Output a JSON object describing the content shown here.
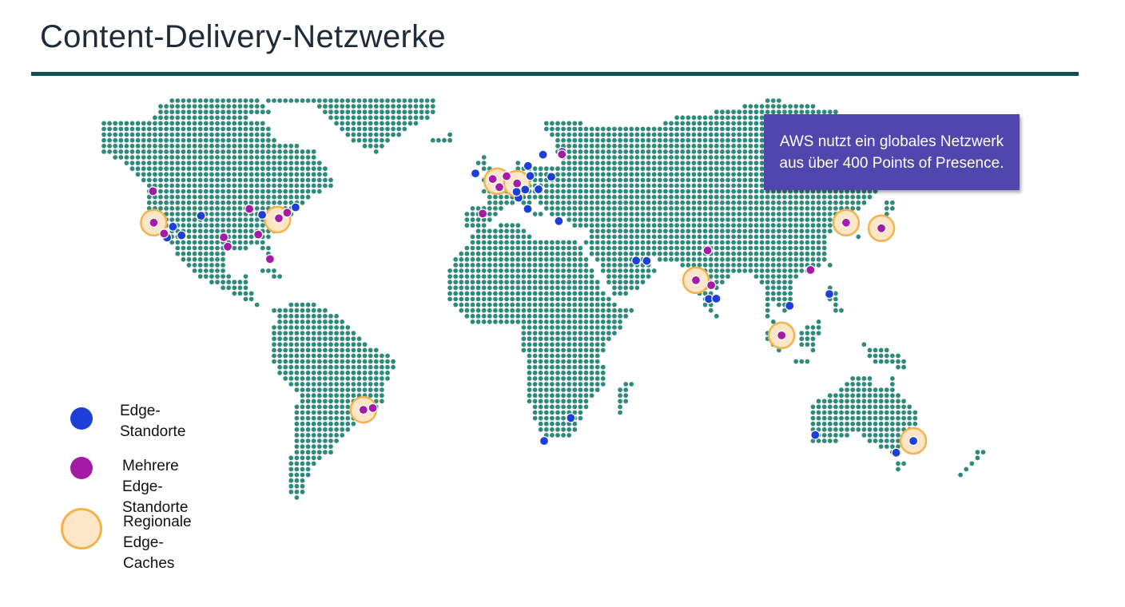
{
  "slide": {
    "title": "Content-Delivery-Netzwerke",
    "callout": "AWS nutzt ein globales Netzwerk aus über 400 Points of Presence."
  },
  "legend": {
    "edge_label": "Edge-\nStandorte",
    "multi_edge_label": "Mehrere Edge-\nStandorte",
    "regional_cache_label": "Regionale\nEdge-Caches"
  },
  "colors": {
    "land_dot": "#2f8a7b",
    "edge_location": "#1d3fd6",
    "multiple_edge_locations": "#a41ba6",
    "regional_cache_fill": "#fde6c8",
    "regional_cache_stroke": "#f2b24d",
    "callout_bg": "#5146ad",
    "title_rule": "#12504f"
  },
  "map": {
    "style": "dotted world map",
    "regional_edge_caches": [
      {
        "name": "US West",
        "lat": 37.5,
        "lon": -122
      },
      {
        "name": "US East",
        "lat": 38.5,
        "lon": -77.5
      },
      {
        "name": "Western Europe",
        "lat": 50.8,
        "lon": 1.5
      },
      {
        "name": "Central Europe",
        "lat": 50,
        "lon": 8.6
      },
      {
        "name": "Mumbai",
        "lat": 19,
        "lon": 73
      },
      {
        "name": "Seoul",
        "lat": 37.5,
        "lon": 127
      },
      {
        "name": "Tokyo",
        "lat": 35.7,
        "lon": 139.7
      },
      {
        "name": "Singapore",
        "lat": 1.3,
        "lon": 103.8
      },
      {
        "name": "São Paulo",
        "lat": -23.5,
        "lon": -46.6
      },
      {
        "name": "Sydney",
        "lat": -33.9,
        "lon": 151.2
      }
    ],
    "edge_locations": [
      {
        "lat": 34,
        "lon": -118
      },
      {
        "lat": 32.7,
        "lon": -117.2
      },
      {
        "lat": 36.2,
        "lon": -115.1
      },
      {
        "lat": 33.4,
        "lon": -112
      },
      {
        "lat": 39.7,
        "lon": -105
      },
      {
        "lat": 32.8,
        "lon": -96.8
      },
      {
        "lat": 41.9,
        "lon": -87.6
      },
      {
        "lat": 40.7,
        "lon": -74
      },
      {
        "lat": 38.9,
        "lon": -77
      },
      {
        "lat": 42.4,
        "lon": -71
      },
      {
        "lat": 33.7,
        "lon": -84.4
      },
      {
        "lat": 25.8,
        "lon": -80.2
      },
      {
        "lat": 40,
        "lon": -83
      },
      {
        "lat": 59.3,
        "lon": 18
      },
      {
        "lat": 55.7,
        "lon": 12.6
      },
      {
        "lat": 60.2,
        "lon": 24.9
      },
      {
        "lat": 51.5,
        "lon": -0.1
      },
      {
        "lat": 53.3,
        "lon": -6.3
      },
      {
        "lat": 48.9,
        "lon": 2.3
      },
      {
        "lat": 52.4,
        "lon": 4.9
      },
      {
        "lat": 50.1,
        "lon": 8.7
      },
      {
        "lat": 52.5,
        "lon": 13.4
      },
      {
        "lat": 48.1,
        "lon": 11.6
      },
      {
        "lat": 45.5,
        "lon": 9.2
      },
      {
        "lat": 47.4,
        "lon": 8.5
      },
      {
        "lat": 52.2,
        "lon": 21
      },
      {
        "lat": 48.2,
        "lon": 16.4
      },
      {
        "lat": 41.9,
        "lon": 12.5
      },
      {
        "lat": 38,
        "lon": 23.7
      },
      {
        "lat": 25.2,
        "lon": 55.3
      },
      {
        "lat": 25.3,
        "lon": 51.5
      },
      {
        "lat": 13,
        "lon": 77.6
      },
      {
        "lat": 13.1,
        "lon": 80.3
      },
      {
        "lat": 22.3,
        "lon": 114.2
      },
      {
        "lat": 14.6,
        "lon": 121
      },
      {
        "lat": 10.8,
        "lon": 106.7
      },
      {
        "lat": -26.2,
        "lon": 28
      },
      {
        "lat": -33.9,
        "lon": 18.4
      },
      {
        "lat": -31.9,
        "lon": 115.9
      },
      {
        "lat": -37.8,
        "lon": 145
      },
      {
        "lat": -33.9,
        "lon": 151.2
      }
    ],
    "multiple_edge_locations": [
      {
        "lat": 37.5,
        "lon": -122
      },
      {
        "lat": 34,
        "lon": -118.3
      },
      {
        "lat": 47.6,
        "lon": -122.3
      },
      {
        "lat": 32.8,
        "lon": -96.8
      },
      {
        "lat": 29.8,
        "lon": -95.4
      },
      {
        "lat": 41.9,
        "lon": -87.6
      },
      {
        "lat": 40.7,
        "lon": -74
      },
      {
        "lat": 38.9,
        "lon": -77
      },
      {
        "lat": 33.7,
        "lon": -84.4
      },
      {
        "lat": 25.8,
        "lon": -80.2
      },
      {
        "lat": 51.5,
        "lon": -0.1
      },
      {
        "lat": 48.9,
        "lon": 2.3
      },
      {
        "lat": 50.1,
        "lon": 8.7
      },
      {
        "lat": 52.4,
        "lon": 4.9
      },
      {
        "lat": 59.4,
        "lon": 24.8
      },
      {
        "lat": 40.4,
        "lon": -3.7
      },
      {
        "lat": 28.6,
        "lon": 77.2
      },
      {
        "lat": 19,
        "lon": 73
      },
      {
        "lat": 17.4,
        "lon": 78.5
      },
      {
        "lat": 37.5,
        "lon": 127
      },
      {
        "lat": 35.7,
        "lon": 139.7
      },
      {
        "lat": 22.3,
        "lon": 114.2
      },
      {
        "lat": 1.3,
        "lon": 103.8
      },
      {
        "lat": -23.5,
        "lon": -46.6
      },
      {
        "lat": -22.9,
        "lon": -43.2
      }
    ]
  }
}
